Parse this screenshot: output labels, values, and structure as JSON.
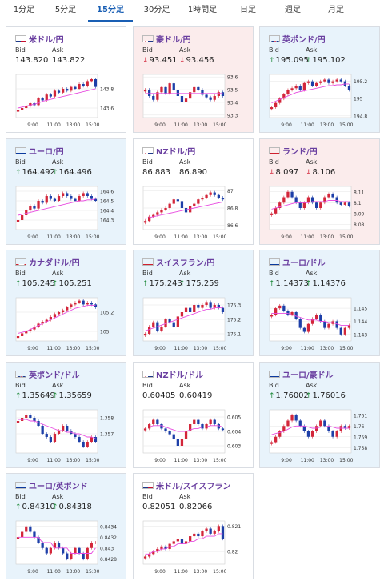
{
  "tabs": [
    {
      "label": "1分足",
      "active": false
    },
    {
      "label": "5分足",
      "active": false
    },
    {
      "label": "15分足",
      "active": true
    },
    {
      "label": "30分足",
      "active": false
    },
    {
      "label": "1時間足",
      "active": false
    },
    {
      "label": "日足",
      "active": false
    },
    {
      "label": "週足",
      "active": false
    },
    {
      "label": "月足",
      "active": false
    }
  ],
  "bid_label": "Bid",
  "ask_label": "Ask",
  "x_ticks": [
    "9:00",
    "11:00",
    "13:00",
    "15:00"
  ],
  "colors": {
    "up_bg": "#e8f3fb",
    "down_bg": "#fbecec",
    "candle_up": "#d3263a",
    "candle_down": "#1d3fa8",
    "ma": "#e84de0",
    "title": "#6a3fa0",
    "up_arrow": "#1f8a3b",
    "down_arrow": "#d3263a"
  },
  "cards": [
    {
      "name": "米ドル/円",
      "flag": "us-flag",
      "direction": "flat",
      "bid": "143.820",
      "ask": "143.822",
      "bid_dir": "",
      "ask_dir": "",
      "y_ticks": [
        "143.8",
        "143.6"
      ],
      "ylim": [
        143.5,
        143.95
      ],
      "close": [
        143.58,
        143.6,
        143.62,
        143.65,
        143.63,
        143.7,
        143.68,
        143.74,
        143.72,
        143.78,
        143.76,
        143.8,
        143.78,
        143.82,
        143.8,
        143.85,
        143.83,
        143.88,
        143.9,
        143.82
      ],
      "ma": [
        143.6,
        143.61,
        143.62,
        143.63,
        143.64,
        143.65,
        143.67,
        143.68,
        143.69,
        143.7,
        143.71,
        143.72,
        143.73,
        143.74,
        143.75,
        143.76,
        143.77,
        143.78,
        143.79,
        143.8
      ]
    },
    {
      "name": "豪ドル/円",
      "flag": "au-flag",
      "direction": "down",
      "bid": "93.451",
      "ask": "93.456",
      "bid_dir": "down",
      "ask_dir": "down",
      "y_ticks": [
        "93.6",
        "93.5",
        "93.4",
        "93.3"
      ],
      "ylim": [
        93.28,
        93.62
      ],
      "close": [
        93.5,
        93.45,
        93.42,
        93.48,
        93.52,
        93.47,
        93.55,
        93.5,
        93.45,
        93.4,
        93.43,
        93.48,
        93.52,
        93.5,
        93.46,
        93.44,
        93.42,
        93.45,
        93.48,
        93.45
      ],
      "ma": [
        93.47,
        93.47,
        93.47,
        93.47,
        93.47,
        93.47,
        93.47,
        93.47,
        93.47,
        93.47,
        93.47,
        93.47,
        93.47,
        93.47,
        93.47,
        93.47,
        93.47,
        93.47,
        93.47,
        93.47
      ]
    },
    {
      "name": "英ポンド/円",
      "flag": "uk-flag",
      "direction": "up",
      "bid": "195.095",
      "ask": "195.102",
      "bid_dir": "up",
      "ask_dir": "up",
      "y_ticks": [
        "195.2",
        "195",
        "194.8"
      ],
      "ylim": [
        194.78,
        195.28
      ],
      "close": [
        194.9,
        194.95,
        195.0,
        195.05,
        195.1,
        195.12,
        195.15,
        195.1,
        195.18,
        195.2,
        195.15,
        195.18,
        195.2,
        195.22,
        195.18,
        195.2,
        195.22,
        195.2,
        195.15,
        195.1
      ],
      "ma": [
        194.95,
        194.97,
        194.99,
        195.01,
        195.03,
        195.05,
        195.07,
        195.08,
        195.09,
        195.1,
        195.11,
        195.12,
        195.13,
        195.14,
        195.15,
        195.15,
        195.16,
        195.16,
        195.17,
        195.17
      ]
    },
    {
      "name": "ユーロ/円",
      "flag": "eu-flag",
      "direction": "up",
      "bid": "164.492",
      "ask": "164.496",
      "bid_dir": "up",
      "ask_dir": "up",
      "y_ticks": [
        "164.6",
        "164.5",
        "164.4",
        "164.3"
      ],
      "ylim": [
        164.2,
        164.65
      ],
      "close": [
        164.3,
        164.35,
        164.4,
        164.45,
        164.42,
        164.5,
        164.48,
        164.55,
        164.52,
        164.5,
        164.55,
        164.58,
        164.55,
        164.52,
        164.5,
        164.55,
        164.58,
        164.55,
        164.52,
        164.5
      ],
      "ma": [
        164.35,
        164.36,
        164.37,
        164.38,
        164.39,
        164.4,
        164.41,
        164.42,
        164.43,
        164.44,
        164.45,
        164.46,
        164.47,
        164.48,
        164.49,
        164.5,
        164.5,
        164.51,
        164.51,
        164.52
      ]
    },
    {
      "name": "NZドル/円",
      "flag": "nz-flag",
      "direction": "flat",
      "bid": "86.883",
      "ask": "86.890",
      "bid_dir": "",
      "ask_dir": "",
      "y_ticks": [
        "87",
        "86.8",
        "86.6"
      ],
      "ylim": [
        86.55,
        87.05
      ],
      "close": [
        86.65,
        86.7,
        86.72,
        86.75,
        86.78,
        86.8,
        86.85,
        86.9,
        86.88,
        86.8,
        86.75,
        86.82,
        86.85,
        86.9,
        86.92,
        86.95,
        86.98,
        86.95,
        86.92,
        86.9
      ],
      "ma": [
        86.68,
        86.69,
        86.7,
        86.71,
        86.72,
        86.73,
        86.74,
        86.75,
        86.76,
        86.77,
        86.78,
        86.79,
        86.8,
        86.81,
        86.82,
        86.83,
        86.84,
        86.85,
        86.86,
        86.87
      ]
    },
    {
      "name": "ランド/円",
      "flag": "za-flag",
      "direction": "down",
      "bid": "8.097",
      "ask": "8.106",
      "bid_dir": "down",
      "ask_dir": "down",
      "y_ticks": [
        "8.11",
        "8.1",
        "8.09",
        "8.08"
      ],
      "ylim": [
        8.075,
        8.115
      ],
      "close": [
        8.09,
        8.095,
        8.1,
        8.105,
        8.11,
        8.105,
        8.1,
        8.095,
        8.1,
        8.105,
        8.1,
        8.095,
        8.1,
        8.105,
        8.108,
        8.105,
        8.1,
        8.098,
        8.1,
        8.097
      ],
      "ma": [
        8.094,
        8.095,
        8.096,
        8.097,
        8.098,
        8.099,
        8.1,
        8.1,
        8.1,
        8.1,
        8.101,
        8.101,
        8.101,
        8.101,
        8.102,
        8.102,
        8.102,
        8.101,
        8.101,
        8.101
      ]
    },
    {
      "name": "カナダドル/円",
      "flag": "ca-flag",
      "direction": "up",
      "bid": "105.245",
      "ask": "105.251",
      "bid_dir": "up",
      "ask_dir": "up",
      "y_ticks": [
        "105.2",
        "105"
      ],
      "ylim": [
        104.9,
        105.35
      ],
      "close": [
        104.95,
        104.98,
        105.0,
        105.02,
        105.05,
        105.08,
        105.1,
        105.12,
        105.15,
        105.18,
        105.2,
        105.22,
        105.25,
        105.28,
        105.3,
        105.32,
        105.28,
        105.3,
        105.28,
        105.25
      ],
      "ma": [
        104.98,
        104.99,
        105.0,
        105.02,
        105.04,
        105.06,
        105.08,
        105.1,
        105.12,
        105.14,
        105.16,
        105.18,
        105.2,
        105.22,
        105.24,
        105.25,
        105.26,
        105.27,
        105.27,
        105.27
      ]
    },
    {
      "name": "スイスフラン/円",
      "flag": "ch-flag",
      "direction": "up",
      "bid": "175.243",
      "ask": "175.259",
      "bid_dir": "up",
      "ask_dir": "up",
      "y_ticks": [
        "175.3",
        "175.2",
        "175.1"
      ],
      "ylim": [
        175.05,
        175.35
      ],
      "close": [
        175.1,
        175.15,
        175.18,
        175.12,
        175.15,
        175.2,
        175.18,
        175.15,
        175.22,
        175.25,
        175.28,
        175.25,
        175.3,
        175.28,
        175.3,
        175.32,
        175.28,
        175.3,
        175.28,
        175.25
      ],
      "ma": [
        175.12,
        175.13,
        175.14,
        175.15,
        175.16,
        175.17,
        175.18,
        175.19,
        175.2,
        175.21,
        175.22,
        175.23,
        175.24,
        175.25,
        175.26,
        175.27,
        175.27,
        175.28,
        175.28,
        175.28
      ]
    },
    {
      "name": "ユーロ/ドル",
      "flag": "eu-flag",
      "direction": "up",
      "bid": "1.14373",
      "ask": "1.14376",
      "bid_dir": "up",
      "ask_dir": "up",
      "y_ticks": [
        "1.145",
        "1.144",
        "1.143"
      ],
      "ylim": [
        1.1425,
        1.1458
      ],
      "close": [
        1.1445,
        1.145,
        1.1452,
        1.1448,
        1.1445,
        1.1447,
        1.1442,
        1.1435,
        1.1432,
        1.1438,
        1.1442,
        1.1445,
        1.144,
        1.1435,
        1.1438,
        1.144,
        1.1435,
        1.143,
        1.1435,
        1.1437
      ],
      "ma": [
        1.1446,
        1.1446,
        1.1446,
        1.1446,
        1.1446,
        1.1445,
        1.1444,
        1.1443,
        1.1442,
        1.1441,
        1.1441,
        1.1441,
        1.144,
        1.144,
        1.1439,
        1.1439,
        1.1438,
        1.1437,
        1.1437,
        1.1437
      ]
    },
    {
      "name": "英ポンド/ドル",
      "flag": "uk-flag",
      "direction": "up",
      "bid": "1.35649",
      "ask": "1.35659",
      "bid_dir": "up",
      "ask_dir": "up",
      "y_ticks": [
        "1.358",
        "1.357"
      ],
      "ylim": [
        1.3558,
        1.3585
      ],
      "close": [
        1.3578,
        1.358,
        1.3582,
        1.358,
        1.3578,
        1.3575,
        1.357,
        1.3568,
        1.3565,
        1.357,
        1.3572,
        1.3575,
        1.3572,
        1.357,
        1.3568,
        1.3565,
        1.3562,
        1.3565,
        1.3568,
        1.3565
      ],
      "ma": [
        1.3579,
        1.3579,
        1.3579,
        1.3578,
        1.3578,
        1.3577,
        1.3576,
        1.3575,
        1.3574,
        1.3573,
        1.3572,
        1.3572,
        1.3571,
        1.3571,
        1.357,
        1.357,
        1.3569,
        1.3568,
        1.3568,
        1.3567
      ]
    },
    {
      "name": "NZドル/ドル",
      "flag": "nz-flag",
      "direction": "flat",
      "bid": "0.60405",
      "ask": "0.60419",
      "bid_dir": "",
      "ask_dir": "",
      "y_ticks": [
        "0.605",
        "0.604",
        "0.603"
      ],
      "ylim": [
        0.6025,
        0.6055
      ],
      "close": [
        0.6042,
        0.6045,
        0.6048,
        0.6045,
        0.6042,
        0.604,
        0.6038,
        0.6035,
        0.603,
        0.6035,
        0.604,
        0.6045,
        0.6048,
        0.6045,
        0.6042,
        0.6045,
        0.6048,
        0.6045,
        0.6042,
        0.6041
      ],
      "ma": [
        0.6043,
        0.6043,
        0.6044,
        0.6044,
        0.6044,
        0.6043,
        0.6042,
        0.6041,
        0.604,
        0.604,
        0.604,
        0.6041,
        0.6042,
        0.6042,
        0.6043,
        0.6043,
        0.6044,
        0.6044,
        0.6044,
        0.6043
      ]
    },
    {
      "name": "ユーロ/豪ドル",
      "flag": "eu-flag",
      "direction": "up",
      "bid": "1.76002",
      "ask": "1.76016",
      "bid_dir": "up",
      "ask_dir": "up",
      "y_ticks": [
        "1.761",
        "1.76",
        "1.759",
        "1.758"
      ],
      "ylim": [
        1.7575,
        1.7615
      ],
      "close": [
        1.7585,
        1.759,
        1.7595,
        1.76,
        1.7605,
        1.761,
        1.7605,
        1.76,
        1.7595,
        1.759,
        1.7595,
        1.76,
        1.7605,
        1.76,
        1.7595,
        1.759,
        1.7595,
        1.76,
        1.7598,
        1.76
      ],
      "ma": [
        1.7592,
        1.7593,
        1.7594,
        1.7595,
        1.7597,
        1.7599,
        1.76,
        1.76,
        1.76,
        1.7599,
        1.7598,
        1.7598,
        1.7599,
        1.7599,
        1.76,
        1.7599,
        1.7598,
        1.7598,
        1.7598,
        1.7598
      ]
    },
    {
      "name": "ユーロ/英ポンド",
      "flag": "eu-flag",
      "direction": "up",
      "bid": "0.84310",
      "ask": "0.84318",
      "bid_dir": "up",
      "ask_dir": "up",
      "y_ticks": [
        "0.8434",
        "0.8432",
        "0.843",
        "0.8428"
      ],
      "ylim": [
        0.8427,
        0.8435
      ],
      "close": [
        0.8432,
        0.8433,
        0.8434,
        0.8433,
        0.8432,
        0.8431,
        0.843,
        0.8429,
        0.843,
        0.8431,
        0.843,
        0.8429,
        0.8428,
        0.8429,
        0.843,
        0.8429,
        0.8428,
        0.843,
        0.8431,
        0.8431
      ],
      "ma": [
        0.8432,
        0.8432,
        0.8432,
        0.8432,
        0.8432,
        0.8432,
        0.8431,
        0.8431,
        0.8431,
        0.843,
        0.843,
        0.843,
        0.843,
        0.8429,
        0.8429,
        0.8429,
        0.8429,
        0.8429,
        0.8429,
        0.843
      ]
    },
    {
      "name": "米ドル/スイスフラン",
      "flag": "us-flag",
      "direction": "flat",
      "bid": "0.82051",
      "ask": "0.82066",
      "bid_dir": "",
      "ask_dir": "",
      "y_ticks": [
        "0.821",
        "0.82"
      ],
      "ylim": [
        0.8195,
        0.8212
      ],
      "close": [
        0.8198,
        0.8199,
        0.82,
        0.8201,
        0.8202,
        0.8201,
        0.8203,
        0.8204,
        0.8205,
        0.8203,
        0.8204,
        0.8206,
        0.8207,
        0.8206,
        0.8208,
        0.8209,
        0.8207,
        0.8208,
        0.821,
        0.8205
      ],
      "ma": [
        0.8199,
        0.8199,
        0.82,
        0.82,
        0.8201,
        0.8201,
        0.8202,
        0.8202,
        0.8203,
        0.8203,
        0.8203,
        0.8204,
        0.8204,
        0.8205,
        0.8205,
        0.8206,
        0.8206,
        0.8206,
        0.8207,
        0.8207
      ]
    }
  ]
}
